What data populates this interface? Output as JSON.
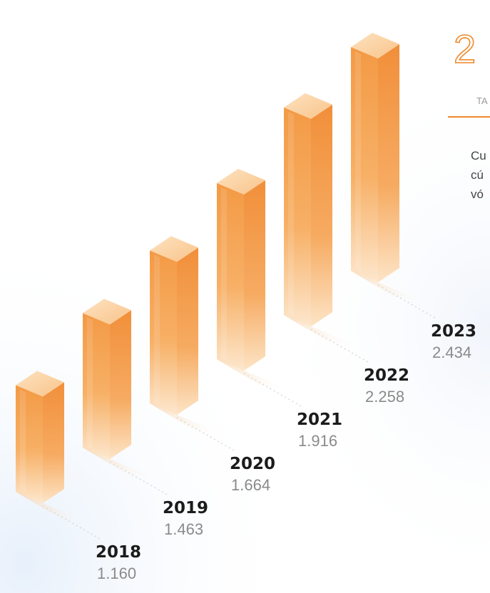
{
  "colors": {
    "bar_front": "#f6a24f",
    "bar_side": "#f29a45",
    "bar_top": "#fcd6a8",
    "accent": "#ee8a2c",
    "year_text": "#1b1b1b",
    "value_text": "#8a8a8a"
  },
  "header": {
    "big_number": "2",
    "small_label": "TA",
    "description_lines": [
      "Cu",
      "cú",
      "vó"
    ]
  },
  "chart_data": {
    "type": "bar",
    "categories": [
      "2018",
      "2019",
      "2020",
      "2021",
      "2022",
      "2023"
    ],
    "values": [
      1160,
      1463,
      1664,
      1916,
      2258,
      2434
    ],
    "value_labels": [
      "1.160",
      "1.463",
      "1.664",
      "1.916",
      "2.258",
      "2.434"
    ]
  }
}
